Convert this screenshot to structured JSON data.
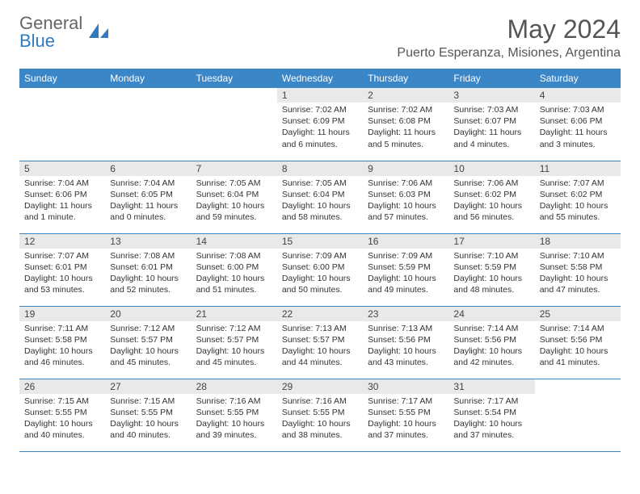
{
  "logo": {
    "text1": "General",
    "text2": "Blue"
  },
  "title": "May 2024",
  "location": "Puerto Esperanza, Misiones, Argentina",
  "colors": {
    "header_bg": "#3b86c7",
    "header_text": "#ffffff",
    "daynum_bg": "#e9e9e9",
    "border": "#3b86c7",
    "logo_blue": "#2f7bbf",
    "logo_gray": "#666666",
    "body_text": "#333333"
  },
  "weekdays": [
    "Sunday",
    "Monday",
    "Tuesday",
    "Wednesday",
    "Thursday",
    "Friday",
    "Saturday"
  ],
  "first_weekday_index": 3,
  "days": [
    {
      "n": 1,
      "sunrise": "7:02 AM",
      "sunset": "6:09 PM",
      "daylight": "11 hours and 6 minutes."
    },
    {
      "n": 2,
      "sunrise": "7:02 AM",
      "sunset": "6:08 PM",
      "daylight": "11 hours and 5 minutes."
    },
    {
      "n": 3,
      "sunrise": "7:03 AM",
      "sunset": "6:07 PM",
      "daylight": "11 hours and 4 minutes."
    },
    {
      "n": 4,
      "sunrise": "7:03 AM",
      "sunset": "6:06 PM",
      "daylight": "11 hours and 3 minutes."
    },
    {
      "n": 5,
      "sunrise": "7:04 AM",
      "sunset": "6:06 PM",
      "daylight": "11 hours and 1 minute."
    },
    {
      "n": 6,
      "sunrise": "7:04 AM",
      "sunset": "6:05 PM",
      "daylight": "11 hours and 0 minutes."
    },
    {
      "n": 7,
      "sunrise": "7:05 AM",
      "sunset": "6:04 PM",
      "daylight": "10 hours and 59 minutes."
    },
    {
      "n": 8,
      "sunrise": "7:05 AM",
      "sunset": "6:04 PM",
      "daylight": "10 hours and 58 minutes."
    },
    {
      "n": 9,
      "sunrise": "7:06 AM",
      "sunset": "6:03 PM",
      "daylight": "10 hours and 57 minutes."
    },
    {
      "n": 10,
      "sunrise": "7:06 AM",
      "sunset": "6:02 PM",
      "daylight": "10 hours and 56 minutes."
    },
    {
      "n": 11,
      "sunrise": "7:07 AM",
      "sunset": "6:02 PM",
      "daylight": "10 hours and 55 minutes."
    },
    {
      "n": 12,
      "sunrise": "7:07 AM",
      "sunset": "6:01 PM",
      "daylight": "10 hours and 53 minutes."
    },
    {
      "n": 13,
      "sunrise": "7:08 AM",
      "sunset": "6:01 PM",
      "daylight": "10 hours and 52 minutes."
    },
    {
      "n": 14,
      "sunrise": "7:08 AM",
      "sunset": "6:00 PM",
      "daylight": "10 hours and 51 minutes."
    },
    {
      "n": 15,
      "sunrise": "7:09 AM",
      "sunset": "6:00 PM",
      "daylight": "10 hours and 50 minutes."
    },
    {
      "n": 16,
      "sunrise": "7:09 AM",
      "sunset": "5:59 PM",
      "daylight": "10 hours and 49 minutes."
    },
    {
      "n": 17,
      "sunrise": "7:10 AM",
      "sunset": "5:59 PM",
      "daylight": "10 hours and 48 minutes."
    },
    {
      "n": 18,
      "sunrise": "7:10 AM",
      "sunset": "5:58 PM",
      "daylight": "10 hours and 47 minutes."
    },
    {
      "n": 19,
      "sunrise": "7:11 AM",
      "sunset": "5:58 PM",
      "daylight": "10 hours and 46 minutes."
    },
    {
      "n": 20,
      "sunrise": "7:12 AM",
      "sunset": "5:57 PM",
      "daylight": "10 hours and 45 minutes."
    },
    {
      "n": 21,
      "sunrise": "7:12 AM",
      "sunset": "5:57 PM",
      "daylight": "10 hours and 45 minutes."
    },
    {
      "n": 22,
      "sunrise": "7:13 AM",
      "sunset": "5:57 PM",
      "daylight": "10 hours and 44 minutes."
    },
    {
      "n": 23,
      "sunrise": "7:13 AM",
      "sunset": "5:56 PM",
      "daylight": "10 hours and 43 minutes."
    },
    {
      "n": 24,
      "sunrise": "7:14 AM",
      "sunset": "5:56 PM",
      "daylight": "10 hours and 42 minutes."
    },
    {
      "n": 25,
      "sunrise": "7:14 AM",
      "sunset": "5:56 PM",
      "daylight": "10 hours and 41 minutes."
    },
    {
      "n": 26,
      "sunrise": "7:15 AM",
      "sunset": "5:55 PM",
      "daylight": "10 hours and 40 minutes."
    },
    {
      "n": 27,
      "sunrise": "7:15 AM",
      "sunset": "5:55 PM",
      "daylight": "10 hours and 40 minutes."
    },
    {
      "n": 28,
      "sunrise": "7:16 AM",
      "sunset": "5:55 PM",
      "daylight": "10 hours and 39 minutes."
    },
    {
      "n": 29,
      "sunrise": "7:16 AM",
      "sunset": "5:55 PM",
      "daylight": "10 hours and 38 minutes."
    },
    {
      "n": 30,
      "sunrise": "7:17 AM",
      "sunset": "5:55 PM",
      "daylight": "10 hours and 37 minutes."
    },
    {
      "n": 31,
      "sunrise": "7:17 AM",
      "sunset": "5:54 PM",
      "daylight": "10 hours and 37 minutes."
    }
  ],
  "labels": {
    "sunrise": "Sunrise:",
    "sunset": "Sunset:",
    "daylight": "Daylight:"
  }
}
